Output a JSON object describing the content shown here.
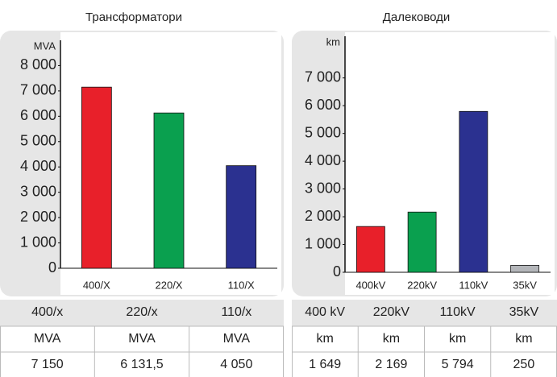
{
  "chart_data": [
    {
      "type": "bar",
      "title": "Трансформатори",
      "y_label": "MVA",
      "categories": [
        "400/X",
        "220/X",
        "110/X"
      ],
      "values": [
        7150,
        6131.5,
        4050
      ],
      "value_labels": [
        "7 150",
        "6 131,5",
        "4 050"
      ],
      "colors": [
        "#e8202a",
        "#0aa04f",
        "#2b3190"
      ],
      "ylim": [
        0,
        9000
      ],
      "yticks": [
        0,
        {
          "value": 1000,
          "label": "1 000"
        },
        {
          "value": 2000,
          "label": "2 000"
        },
        {
          "value": 3000,
          "label": "3 000"
        },
        {
          "value": 4000,
          "label": "4 000"
        },
        {
          "value": 5000,
          "label": "5 000"
        },
        {
          "value": 6000,
          "label": "6 000"
        },
        {
          "value": 7000,
          "label": "7 000"
        },
        {
          "value": 8000,
          "label": "8 000"
        }
      ],
      "table": {
        "header": [
          "400/x",
          "220/x",
          "110/x"
        ],
        "units": [
          "MVA",
          "MVA",
          "MVA"
        ]
      }
    },
    {
      "type": "bar",
      "title": "Далеководи",
      "y_label": "km",
      "categories": [
        "400kV",
        "220kV",
        "110kV",
        "35kV"
      ],
      "values": [
        1649,
        2169,
        5794,
        250
      ],
      "value_labels": [
        "1 649",
        "2 169",
        "5 794",
        "250"
      ],
      "colors": [
        "#e8202a",
        "#0aa04f",
        "#2b3190",
        "#b4b6ba"
      ],
      "ylim": [
        0,
        8500
      ],
      "yticks": [
        0,
        {
          "value": 1000,
          "label": "1 000"
        },
        {
          "value": 2000,
          "label": "2 000"
        },
        {
          "value": 3000,
          "label": "3 000"
        },
        {
          "value": 4000,
          "label": "4 000"
        },
        {
          "value": 5000,
          "label": "5 000"
        },
        {
          "value": 6000,
          "label": "6 000"
        },
        {
          "value": 7000,
          "label": "7 000"
        }
      ],
      "table": {
        "header": [
          "400 kV",
          "220kV",
          "110kV",
          "35kV"
        ],
        "units": [
          "km",
          "km",
          "km",
          "km"
        ]
      }
    }
  ]
}
